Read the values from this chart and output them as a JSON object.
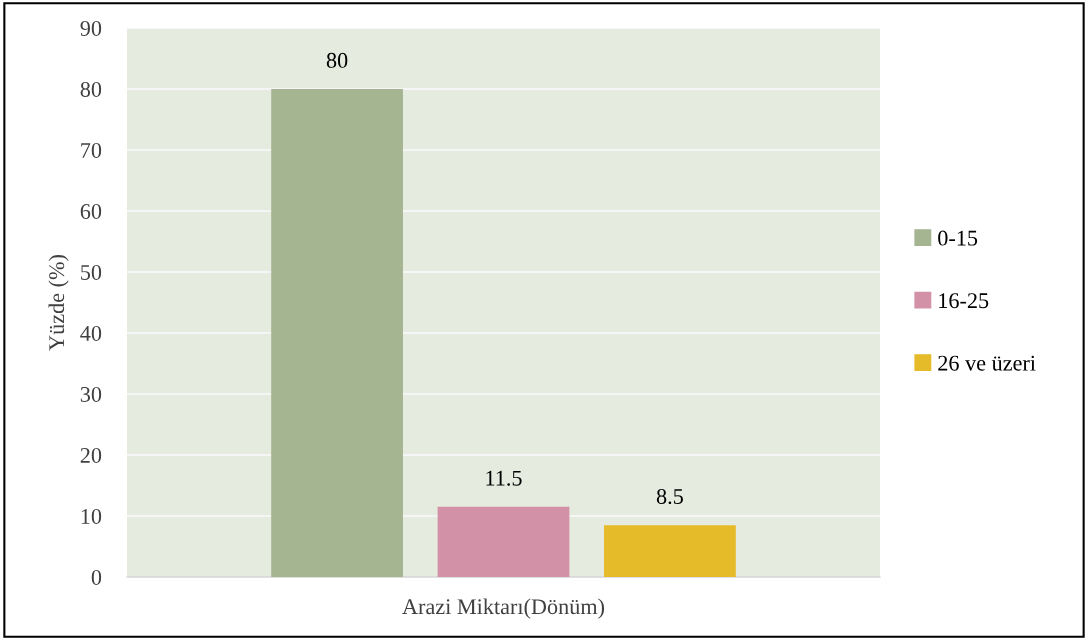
{
  "chart_data": {
    "type": "bar",
    "xlabel": "Arazi Miktarı(Dönüm)",
    "ylabel": "Yüzde (%)",
    "categories": [
      null
    ],
    "series": [
      {
        "name": "0-15",
        "color": "#a5b592",
        "values": [
          80
        ]
      },
      {
        "name": "16-25",
        "color": "#d291a6",
        "values": [
          11.5
        ]
      },
      {
        "name": "26 ve üzeri",
        "color": "#e6bb2a",
        "values": [
          8.5
        ]
      }
    ],
    "ylim": [
      0,
      90
    ],
    "yticks": [
      0,
      10,
      20,
      30,
      40,
      50,
      60,
      70,
      80,
      90
    ],
    "grid": "y",
    "legend": "right",
    "data_labels": true
  }
}
